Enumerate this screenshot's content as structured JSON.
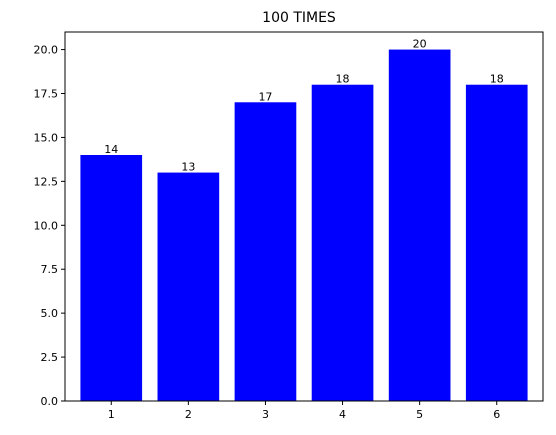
{
  "chart_data": {
    "type": "bar",
    "title": "100 TIMES",
    "xlabel": "",
    "ylabel": "",
    "categories": [
      "1",
      "2",
      "3",
      "4",
      "5",
      "6"
    ],
    "values": [
      14,
      13,
      17,
      18,
      20,
      18
    ],
    "data_labels": [
      "14",
      "13",
      "17",
      "18",
      "20",
      "18"
    ],
    "ylim": [
      0,
      21
    ],
    "yticks": [
      0.0,
      2.5,
      5.0,
      7.5,
      10.0,
      12.5,
      15.0,
      17.5,
      20.0
    ],
    "ytick_labels": [
      "0.0",
      "2.5",
      "5.0",
      "7.5",
      "10.0",
      "12.5",
      "15.0",
      "17.5",
      "20.0"
    ],
    "bar_color": "#0000ff",
    "grid": false,
    "legend": "none"
  }
}
